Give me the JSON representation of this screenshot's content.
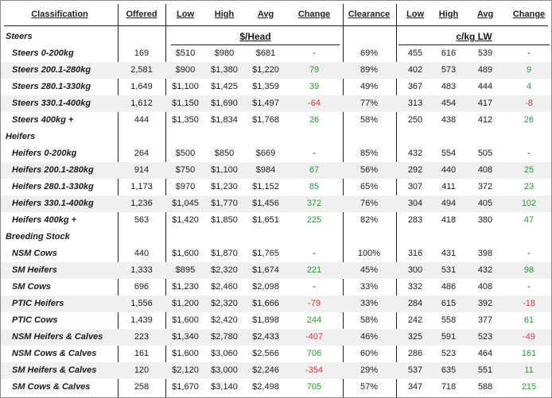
{
  "headers": {
    "classification": "Classification",
    "offered": "Offered",
    "low": "Low",
    "high": "High",
    "avg": "Avg",
    "change": "Change",
    "clearance": "Clearance",
    "low2": "Low",
    "high2": "High",
    "avg2": "Avg",
    "change2": "Change"
  },
  "units": {
    "head": "$/Head",
    "lw": "c/kg LW"
  },
  "sections": [
    {
      "title": "Steers",
      "rows": [
        {
          "name": "Steers 0-200kg",
          "offered": "169",
          "low": "$510",
          "high": "$980",
          "avg": "$681",
          "change": "-",
          "clearance": "69%",
          "low2": "455",
          "high2": "616",
          "avg2": "539",
          "change2": "-"
        },
        {
          "name": "Steers 200.1-280kg",
          "offered": "2,581",
          "low": "$900",
          "high": "$1,380",
          "avg": "$1,220",
          "change": "79",
          "clearance": "89%",
          "low2": "402",
          "high2": "573",
          "avg2": "489",
          "change2": "9"
        },
        {
          "name": "Steers 280.1-330kg",
          "offered": "1,649",
          "low": "$1,100",
          "high": "$1,425",
          "avg": "$1,359",
          "change": "39",
          "clearance": "49%",
          "low2": "367",
          "high2": "483",
          "avg2": "444",
          "change2": "4"
        },
        {
          "name": "Steers 330.1-400kg",
          "offered": "1,612",
          "low": "$1,150",
          "high": "$1,690",
          "avg": "$1,497",
          "change": "-64",
          "clearance": "77%",
          "low2": "313",
          "high2": "454",
          "avg2": "417",
          "change2": "-8"
        },
        {
          "name": "Steers 400kg +",
          "offered": "444",
          "low": "$1,350",
          "high": "$1,834",
          "avg": "$1,768",
          "change": "26",
          "clearance": "58%",
          "low2": "250",
          "high2": "438",
          "avg2": "412",
          "change2": "26"
        }
      ]
    },
    {
      "title": "Heifers",
      "rows": [
        {
          "name": "Heifers 0-200kg",
          "offered": "264",
          "low": "$500",
          "high": "$850",
          "avg": "$669",
          "change": "-",
          "clearance": "85%",
          "low2": "432",
          "high2": "554",
          "avg2": "505",
          "change2": "-"
        },
        {
          "name": "Heifers 200.1-280kg",
          "offered": "914",
          "low": "$750",
          "high": "$1,100",
          "avg": "$984",
          "change": "67",
          "clearance": "56%",
          "low2": "292",
          "high2": "440",
          "avg2": "408",
          "change2": "25"
        },
        {
          "name": "Heifers 280.1-330kg",
          "offered": "1,173",
          "low": "$970",
          "high": "$1,230",
          "avg": "$1,152",
          "change": "85",
          "clearance": "65%",
          "low2": "307",
          "high2": "411",
          "avg2": "372",
          "change2": "23"
        },
        {
          "name": "Heifers 330.1-400kg",
          "offered": "1,236",
          "low": "$1,045",
          "high": "$1,770",
          "avg": "$1,456",
          "change": "372",
          "clearance": "76%",
          "low2": "304",
          "high2": "494",
          "avg2": "405",
          "change2": "102"
        },
        {
          "name": "Heifers 400kg +",
          "offered": "563",
          "low": "$1,420",
          "high": "$1,850",
          "avg": "$1,651",
          "change": "225",
          "clearance": "82%",
          "low2": "283",
          "high2": "418",
          "avg2": "380",
          "change2": "47"
        }
      ]
    },
    {
      "title": "Breeding Stock",
      "rows": [
        {
          "name": "NSM Cows",
          "offered": "440",
          "low": "$1,600",
          "high": "$1,870",
          "avg": "$1,765",
          "change": "-",
          "clearance": "100%",
          "low2": "316",
          "high2": "431",
          "avg2": "398",
          "change2": "-"
        },
        {
          "name": "SM Heifers",
          "offered": "1,333",
          "low": "$895",
          "high": "$2,320",
          "avg": "$1,674",
          "change": "221",
          "clearance": "45%",
          "low2": "300",
          "high2": "531",
          "avg2": "432",
          "change2": "98"
        },
        {
          "name": "SM Cows",
          "offered": "696",
          "low": "$1,230",
          "high": "$2,460",
          "avg": "$2,098",
          "change": "-",
          "clearance": "33%",
          "low2": "332",
          "high2": "486",
          "avg2": "408",
          "change2": "-"
        },
        {
          "name": "PTIC Heifers",
          "offered": "1,556",
          "low": "$1,200",
          "high": "$2,320",
          "avg": "$1,666",
          "change": "-79",
          "clearance": "33%",
          "low2": "284",
          "high2": "615",
          "avg2": "392",
          "change2": "-18"
        },
        {
          "name": "PTIC Cows",
          "offered": "1,439",
          "low": "$1,600",
          "high": "$2,420",
          "avg": "$1,898",
          "change": "244",
          "clearance": "58%",
          "low2": "242",
          "high2": "558",
          "avg2": "377",
          "change2": "61"
        },
        {
          "name": "NSM Heifers & Calves",
          "offered": "223",
          "low": "$1,340",
          "high": "$2,780",
          "avg": "$2,433",
          "change": "-407",
          "clearance": "46%",
          "low2": "325",
          "high2": "591",
          "avg2": "523",
          "change2": "-49"
        },
        {
          "name": "NSM Cows & Calves",
          "offered": "161",
          "low": "$1,600",
          "high": "$3,060",
          "avg": "$2,566",
          "change": "706",
          "clearance": "60%",
          "low2": "286",
          "high2": "523",
          "avg2": "464",
          "change2": "161"
        },
        {
          "name": "SM Heifers & Calves",
          "offered": "120",
          "low": "$2,120",
          "high": "$3,000",
          "avg": "$2,246",
          "change": "-354",
          "clearance": "29%",
          "low2": "537",
          "high2": "635",
          "avg2": "551",
          "change2": "11"
        },
        {
          "name": "SM Cows & Calves",
          "offered": "258",
          "low": "$1,670",
          "high": "$3,140",
          "avg": "$2,498",
          "change": "705",
          "clearance": "57%",
          "low2": "347",
          "high2": "718",
          "avg2": "588",
          "change2": "215"
        }
      ]
    }
  ],
  "colors": {
    "positive": "#22a033",
    "negative": "#d43b3b",
    "row_shade": "#f0f0f0"
  }
}
